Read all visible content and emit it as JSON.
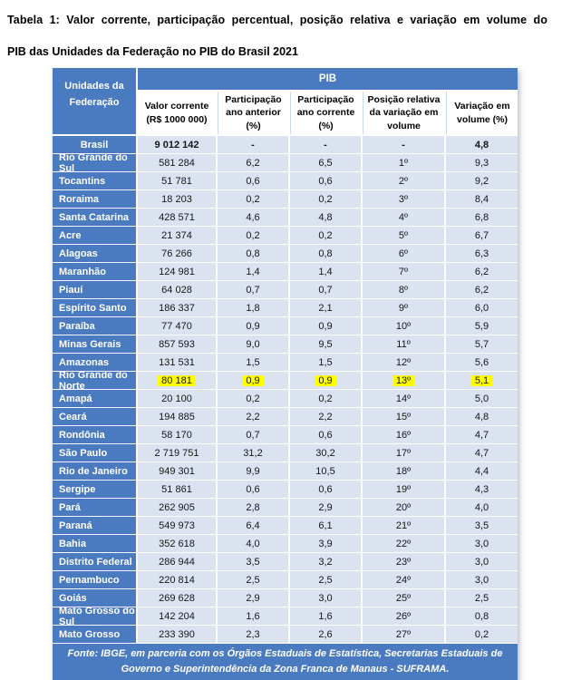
{
  "title": {
    "line1": "Tabela 1: Valor corrente, participação percentual, posição relativa e variação em volume do",
    "line2": "PIB das Unidades da Federação no PIB do Brasil 2021"
  },
  "table": {
    "corner_header": "Unidades da Federação",
    "group_header": "PIB",
    "columns": [
      "Valor corrente (R$ 1000 000)",
      "Participação ano anterior (%)",
      "Participação ano corrente (%)",
      "Posição relativa da variação em volume",
      "Variação em volume (%)"
    ],
    "rows": [
      {
        "name": "Brasil",
        "values": [
          "9 012 142",
          "-",
          "-",
          "-",
          "4,8"
        ],
        "bold": true,
        "center_label": true,
        "highlight": false
      },
      {
        "name": "Rio Grande do Sul",
        "values": [
          "581 284",
          "6,2",
          "6,5",
          "1º",
          "9,3"
        ],
        "highlight": false
      },
      {
        "name": "Tocantins",
        "values": [
          "51 781",
          "0,6",
          "0,6",
          "2º",
          "9,2"
        ],
        "highlight": false
      },
      {
        "name": "Roraima",
        "values": [
          "18 203",
          "0,2",
          "0,2",
          "3º",
          "8,4"
        ],
        "highlight": false
      },
      {
        "name": "Santa Catarina",
        "values": [
          "428 571",
          "4,6",
          "4,8",
          "4º",
          "6,8"
        ],
        "highlight": false
      },
      {
        "name": "Acre",
        "values": [
          "21 374",
          "0,2",
          "0,2",
          "5º",
          "6,7"
        ],
        "highlight": false
      },
      {
        "name": "Alagoas",
        "values": [
          "76 266",
          "0,8",
          "0,8",
          "6º",
          "6,3"
        ],
        "highlight": false
      },
      {
        "name": "Maranhão",
        "values": [
          "124 981",
          "1,4",
          "1,4",
          "7º",
          "6,2"
        ],
        "highlight": false
      },
      {
        "name": "Piauí",
        "values": [
          "64 028",
          "0,7",
          "0,7",
          "8º",
          "6,2"
        ],
        "highlight": false
      },
      {
        "name": "Espírito Santo",
        "values": [
          "186 337",
          "1,8",
          "2,1",
          "9º",
          "6,0"
        ],
        "highlight": false
      },
      {
        "name": "Paraíba",
        "values": [
          "77 470",
          "0,9",
          "0,9",
          "10º",
          "5,9"
        ],
        "highlight": false
      },
      {
        "name": "Minas Gerais",
        "values": [
          "857 593",
          "9,0",
          "9,5",
          "11º",
          "5,7"
        ],
        "highlight": false
      },
      {
        "name": "Amazonas",
        "values": [
          "131 531",
          "1,5",
          "1,5",
          "12º",
          "5,6"
        ],
        "highlight": false
      },
      {
        "name": "Rio Grande do Norte",
        "values": [
          "80 181",
          "0,9",
          "0,9",
          "13º",
          "5,1"
        ],
        "highlight": true
      },
      {
        "name": "Amapá",
        "values": [
          "20 100",
          "0,2",
          "0,2",
          "14º",
          "5,0"
        ],
        "highlight": false
      },
      {
        "name": "Ceará",
        "values": [
          "194 885",
          "2,2",
          "2,2",
          "15º",
          "4,8"
        ],
        "highlight": false
      },
      {
        "name": "Rondônia",
        "values": [
          "58 170",
          "0,7",
          "0,6",
          "16º",
          "4,7"
        ],
        "highlight": false
      },
      {
        "name": "São Paulo",
        "values": [
          "2 719 751",
          "31,2",
          "30,2",
          "17º",
          "4,7"
        ],
        "highlight": false
      },
      {
        "name": "Rio de Janeiro",
        "values": [
          "949 301",
          "9,9",
          "10,5",
          "18º",
          "4,4"
        ],
        "highlight": false
      },
      {
        "name": "Sergipe",
        "values": [
          "51 861",
          "0,6",
          "0,6",
          "19º",
          "4,3"
        ],
        "highlight": false
      },
      {
        "name": "Pará",
        "values": [
          "262 905",
          "2,8",
          "2,9",
          "20º",
          "4,0"
        ],
        "highlight": false
      },
      {
        "name": "Paraná",
        "values": [
          "549 973",
          "6,4",
          "6,1",
          "21º",
          "3,5"
        ],
        "highlight": false
      },
      {
        "name": "Bahia",
        "values": [
          "352 618",
          "4,0",
          "3,9",
          "22º",
          "3,0"
        ],
        "highlight": false
      },
      {
        "name": "Distrito Federal",
        "values": [
          "286 944",
          "3,5",
          "3,2",
          "23º",
          "3,0"
        ],
        "highlight": false
      },
      {
        "name": "Pernambuco",
        "values": [
          "220 814",
          "2,5",
          "2,5",
          "24º",
          "3,0"
        ],
        "highlight": false
      },
      {
        "name": "Goiás",
        "values": [
          "269 628",
          "2,9",
          "3,0",
          "25º",
          "2,5"
        ],
        "highlight": false
      },
      {
        "name": "Mato Grosso do Sul",
        "values": [
          "142 204",
          "1,6",
          "1,6",
          "26º",
          "0,8"
        ],
        "highlight": false
      },
      {
        "name": "Mato Grosso",
        "values": [
          "233 390",
          "2,3",
          "2,6",
          "27º",
          "0,2"
        ],
        "highlight": false
      }
    ],
    "footer": "Fonte: IBGE, em parceria com os Órgãos Estaduais de Estatística, Secretarias Estaduais de Governo e Superintendência da Zona Franca de Manaus - SUFRAMA."
  },
  "colors": {
    "header_blue": "#4a7abf",
    "cell_light_blue": "#dbe2f0",
    "highlight_yellow": "#ffff00"
  }
}
